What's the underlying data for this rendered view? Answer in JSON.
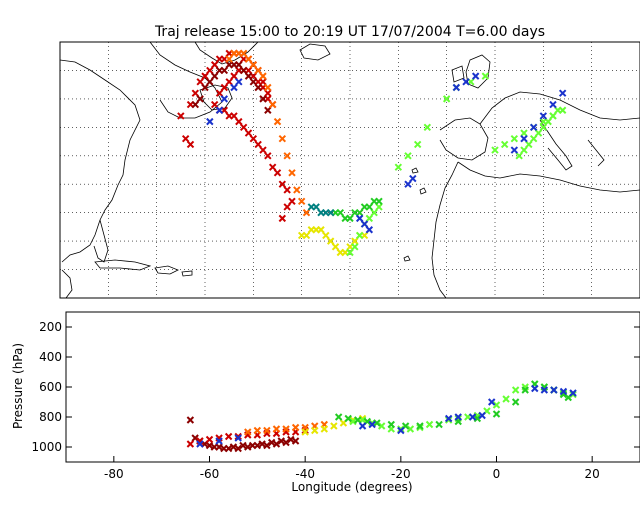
{
  "title": "Traj release 15:00 to 20:19 UT 17/07/2004     T=6.00 days",
  "colors": {
    "red": "#cc0000",
    "dark_red": "#8b0000",
    "orange": "#ff6600",
    "yellow": "#e6e600",
    "light_green": "#66ff33",
    "green": "#22cc22",
    "teal": "#008080",
    "blue": "#1a33cc",
    "dark_green": "#006600"
  },
  "chart_data": [
    {
      "type": "scatter",
      "panel": "map",
      "title": "Traj release 15:00 to 20:19 UT 17/07/2004     T=6.00 days",
      "xlabel": "",
      "ylabel": "",
      "xlim": [
        -90,
        30
      ],
      "ylim": [
        10,
        55
      ],
      "grid": true,
      "series": [
        {
          "color": "red",
          "x": [
            -63,
            -64,
            -65,
            -63,
            -62,
            -61,
            -60,
            -59,
            -58,
            -57,
            -56,
            -55,
            -54,
            -53,
            -52,
            -51,
            -50,
            -49,
            -48,
            -47,
            -46,
            -47,
            -48,
            -49,
            -50,
            -51,
            -52,
            -53,
            -54,
            -55,
            -56,
            -57,
            -58,
            -57,
            -56,
            -55,
            -54,
            -53,
            -52,
            -51,
            -50,
            -49,
            -48,
            -47,
            -46,
            -45,
            -44,
            -43,
            -42,
            -43,
            -44
          ],
          "y": [
            37,
            38,
            42,
            44,
            46,
            48,
            49,
            50,
            51,
            52,
            52,
            53,
            53,
            53,
            52,
            52,
            51,
            50,
            48,
            46,
            44,
            45,
            47,
            48,
            49,
            50,
            50,
            50,
            49,
            48,
            47,
            46,
            44,
            43,
            43,
            42,
            42,
            41,
            40,
            39,
            38,
            37,
            36,
            35,
            33,
            32,
            30,
            29,
            27,
            26,
            24
          ]
        },
        {
          "color": "dark_red",
          "x": [
            -62,
            -61,
            -60,
            -59,
            -58,
            -57,
            -56,
            -55,
            -54,
            -53,
            -52,
            -51,
            -50,
            -49,
            -48,
            -47
          ],
          "y": [
            44,
            45,
            47,
            48,
            49,
            50,
            50,
            51,
            51,
            51,
            50,
            49,
            48,
            47,
            45,
            43
          ]
        },
        {
          "color": "orange",
          "x": [
            -55,
            -54,
            -53,
            -52,
            -51,
            -50,
            -49,
            -48,
            -47,
            -46,
            -45,
            -44,
            -43,
            -42,
            -41,
            -40,
            -39
          ],
          "y": [
            52,
            53,
            53,
            53,
            52,
            51,
            50,
            49,
            47,
            44,
            41,
            38,
            35,
            32,
            29,
            27,
            25
          ]
        },
        {
          "color": "yellow",
          "x": [
            -40,
            -39,
            -38,
            -37,
            -36,
            -35,
            -34,
            -33,
            -32,
            -31,
            -30,
            -29,
            -28,
            -27
          ],
          "y": [
            21,
            21,
            22,
            22,
            22,
            21,
            20,
            19,
            18,
            18,
            19,
            20,
            21,
            21
          ]
        },
        {
          "color": "light_green",
          "x": [
            -30,
            -29,
            -28,
            -27,
            -26,
            -25,
            -24,
            -20,
            -18,
            -16,
            -14,
            -10,
            -8,
            -5,
            -2,
            0,
            2,
            4,
            6,
            8,
            10,
            12,
            14,
            5,
            6,
            7,
            8,
            9,
            10,
            11,
            12,
            13
          ],
          "y": [
            18,
            19,
            21,
            23,
            24,
            25,
            26,
            33,
            35,
            37,
            40,
            45,
            47,
            48,
            49,
            36,
            37,
            38,
            39,
            40,
            41,
            42,
            43,
            35,
            36,
            37,
            38,
            39,
            40,
            41,
            42,
            43
          ]
        },
        {
          "color": "green",
          "x": [
            -33,
            -32,
            -31,
            -30,
            -29,
            -28,
            -27,
            -26,
            -25,
            -24
          ],
          "y": [
            25,
            25,
            24,
            24,
            25,
            25,
            26,
            26,
            27,
            27
          ]
        },
        {
          "color": "teal",
          "x": [
            -38,
            -37,
            -36,
            -35,
            -34
          ],
          "y": [
            26,
            26,
            25,
            25,
            25
          ]
        },
        {
          "color": "blue",
          "x": [
            -59,
            -57,
            -56,
            -54,
            -53,
            -28,
            -27,
            -26,
            -18,
            -17,
            -8,
            -6,
            -4,
            4,
            6,
            8,
            10,
            12,
            14
          ],
          "y": [
            41,
            43,
            45,
            47,
            48,
            24,
            23,
            22,
            30,
            31,
            47,
            48,
            49,
            36,
            38,
            40,
            42,
            44,
            46
          ]
        }
      ]
    },
    {
      "type": "scatter",
      "panel": "profile",
      "title": "",
      "xlabel": "Longitude  (degrees)",
      "ylabel": "Pressure  (hPa)",
      "xlim": [
        -90,
        30
      ],
      "ylim": [
        1100,
        100
      ],
      "xticks": [
        "-80",
        "-60",
        "-40",
        "-20",
        "0",
        "20"
      ],
      "xtick_values": [
        -80,
        -60,
        -40,
        -20,
        0,
        20
      ],
      "yticks": [
        "200",
        "400",
        "600",
        "800",
        "1000"
      ],
      "ytick_values": [
        200,
        400,
        600,
        800,
        1000
      ],
      "grid": false,
      "series": [
        {
          "color": "dark_red",
          "x": [
            -64,
            -63,
            -62,
            -61,
            -60,
            -59,
            -58,
            -57,
            -56,
            -55,
            -54,
            -53,
            -52,
            -51,
            -50,
            -49,
            -48,
            -47,
            -46,
            -45,
            -44,
            -43,
            -42
          ],
          "y": [
            820,
            940,
            960,
            980,
            990,
            1000,
            1000,
            1010,
            1010,
            1000,
            1010,
            990,
            1000,
            990,
            990,
            980,
            990,
            970,
            980,
            960,
            970,
            950,
            960
          ]
        },
        {
          "color": "red",
          "x": [
            -64,
            -62,
            -60,
            -58,
            -56,
            -54,
            -52,
            -50,
            -48,
            -46,
            -44,
            -42,
            -40
          ],
          "y": [
            980,
            960,
            950,
            940,
            930,
            930,
            920,
            920,
            910,
            910,
            900,
            900,
            890
          ]
        },
        {
          "color": "orange",
          "x": [
            -52,
            -50,
            -48,
            -46,
            -44,
            -42,
            -40,
            -38,
            -36
          ],
          "y": [
            900,
            890,
            890,
            880,
            880,
            870,
            870,
            860,
            850
          ]
        },
        {
          "color": "yellow",
          "x": [
            -40,
            -38,
            -36,
            -34,
            -32,
            -30,
            -28
          ],
          "y": [
            900,
            890,
            880,
            860,
            840,
            820,
            810
          ]
        },
        {
          "color": "light_green",
          "x": [
            -30,
            -28,
            -26,
            -24,
            -22,
            -20,
            -18,
            -16,
            -14,
            -10,
            -8,
            -6,
            -4,
            -2,
            0,
            2,
            4,
            6,
            8,
            10,
            12,
            14,
            16
          ],
          "y": [
            830,
            820,
            840,
            860,
            880,
            880,
            880,
            870,
            850,
            820,
            810,
            800,
            790,
            760,
            720,
            680,
            620,
            600,
            580,
            600,
            620,
            640,
            650
          ]
        },
        {
          "color": "green",
          "x": [
            -33,
            -31,
            -29,
            -27,
            -25,
            -22,
            -19,
            -16,
            -12,
            -8,
            -4,
            0,
            4,
            6,
            8,
            10,
            12,
            14,
            15
          ],
          "y": [
            800,
            810,
            820,
            830,
            840,
            850,
            860,
            860,
            850,
            830,
            810,
            780,
            700,
            620,
            580,
            600,
            620,
            650,
            670
          ]
        },
        {
          "color": "blue",
          "x": [
            -62,
            -58,
            -54,
            -28,
            -26,
            -20,
            -10,
            -8,
            -5,
            -3,
            -1,
            8,
            10,
            12,
            14,
            16
          ],
          "y": [
            980,
            960,
            940,
            860,
            850,
            890,
            810,
            800,
            800,
            790,
            700,
            610,
            620,
            620,
            630,
            640
          ]
        }
      ]
    }
  ]
}
